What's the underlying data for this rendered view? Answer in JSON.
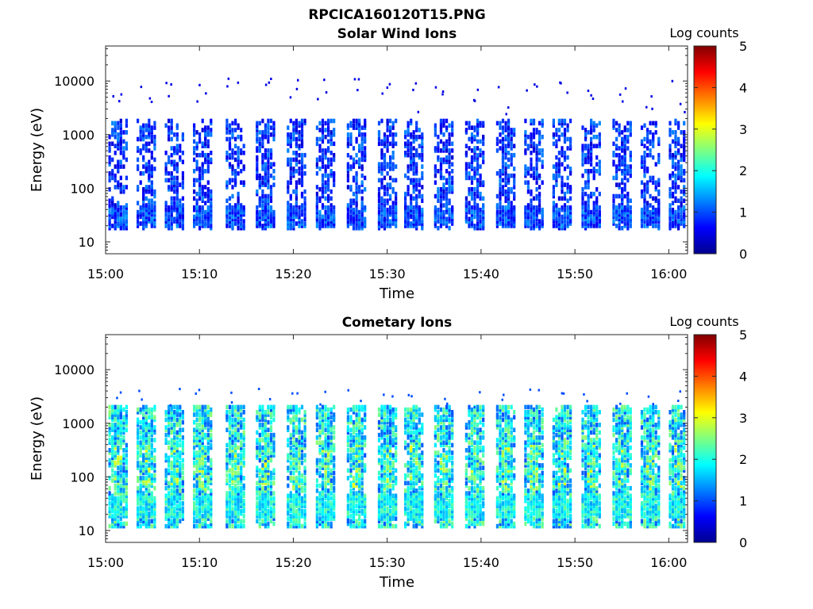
{
  "figure": {
    "title": "RPCICA160120T15.PNG",
    "colorbar_label": "Log counts",
    "colorbar_ticks": [
      "0",
      "1",
      "2",
      "3",
      "4",
      "5"
    ],
    "colormap": "jet",
    "colorbar_range": [
      0,
      5
    ]
  },
  "chart_data": [
    {
      "type": "heatmap",
      "title": "Solar Wind Ions",
      "xlabel": "Time",
      "ylabel": "Energy (eV)",
      "x_ticks": [
        "15:00",
        "15:10",
        "15:20",
        "15:30",
        "15:40",
        "15:50",
        "16:00"
      ],
      "y_ticks": [
        "10",
        "100",
        "1000",
        "10000"
      ],
      "y_scale": "log",
      "ylim": [
        6,
        45000
      ],
      "xlim": [
        "15:00",
        "16:02"
      ],
      "grid": false,
      "sweep_start_minutes": [
        0.3,
        3.3,
        6.3,
        9.3,
        12.8,
        16.0,
        19.3,
        22.4,
        25.7,
        29.0,
        31.8,
        35.0,
        38.3,
        41.6,
        44.6,
        47.6,
        50.7,
        54.0,
        57.0,
        60.0
      ],
      "energy_band_eV": [
        18,
        1800
      ],
      "typical_log_counts": [
        0.4,
        1.3
      ]
    },
    {
      "type": "heatmap",
      "title": "Cometary Ions",
      "xlabel": "Time",
      "ylabel": "Energy (eV)",
      "x_ticks": [
        "15:00",
        "15:10",
        "15:20",
        "15:30",
        "15:40",
        "15:50",
        "16:00"
      ],
      "y_ticks": [
        "10",
        "100",
        "1000",
        "10000"
      ],
      "y_scale": "log",
      "ylim": [
        6,
        45000
      ],
      "xlim": [
        "15:00",
        "16:02"
      ],
      "grid": false,
      "sweep_start_minutes": [
        0.3,
        3.3,
        6.3,
        9.3,
        12.8,
        16.0,
        19.3,
        22.4,
        25.7,
        29.0,
        31.8,
        35.0,
        38.3,
        41.6,
        44.6,
        47.6,
        50.7,
        54.0,
        57.0,
        60.0
      ],
      "energy_band_eV": [
        12,
        2000
      ],
      "typical_log_counts": [
        1.0,
        2.6
      ]
    }
  ]
}
